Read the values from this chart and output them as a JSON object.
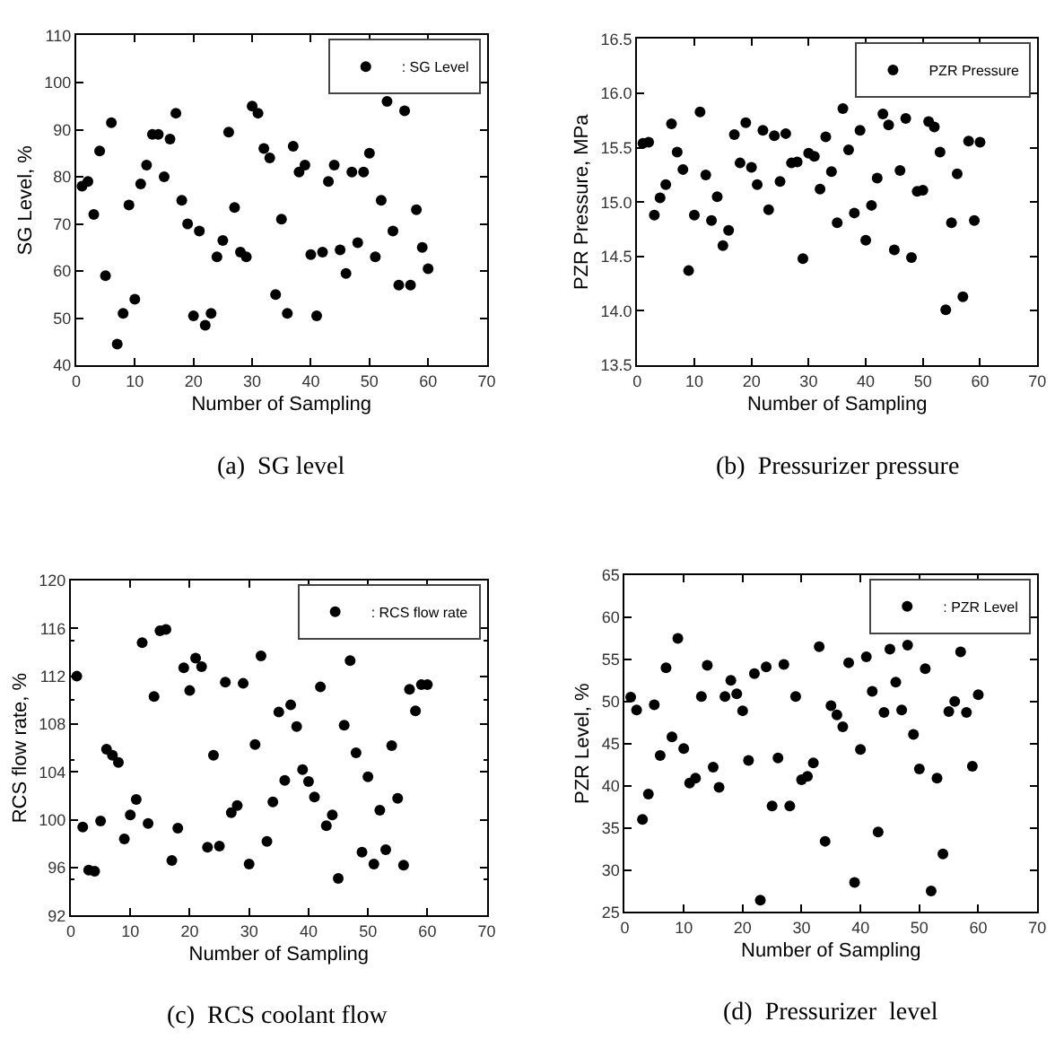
{
  "chart_data": [
    {
      "type": "scatter",
      "xlabel": "Number of Sampling",
      "ylabel": "SG Level, %",
      "annotations": [
        "(a)  SG level"
      ],
      "xlim": [
        0,
        70
      ],
      "xticks": [
        0,
        10,
        20,
        30,
        40,
        50,
        60,
        70
      ],
      "ylim": [
        40,
        110
      ],
      "yticks": [
        40,
        50,
        60,
        70,
        80,
        90,
        100,
        110
      ],
      "legend": "top right",
      "marker": "circle",
      "x": [
        1,
        2,
        3,
        4,
        5,
        6,
        7,
        8,
        9,
        10,
        11,
        12,
        13,
        14,
        15,
        16,
        17,
        18,
        19,
        20,
        21,
        22,
        23,
        24,
        25,
        26,
        27,
        28,
        29,
        30,
        31,
        32,
        33,
        34,
        35,
        36,
        37,
        38,
        39,
        40,
        41,
        42,
        43,
        44,
        45,
        46,
        47,
        48,
        49,
        50,
        51,
        52,
        53,
        54,
        55,
        56,
        57,
        58,
        59,
        60
      ],
      "series": [
        {
          "name": ": SG Level",
          "color": "#000000",
          "values": [
            78,
            79,
            72,
            85.5,
            59,
            91.5,
            44.5,
            51,
            74,
            54,
            78.5,
            82.5,
            89,
            89,
            80,
            88,
            93.5,
            75,
            70,
            50.5,
            68.5,
            48.5,
            51,
            63,
            66.5,
            89.5,
            73.5,
            64,
            63,
            95,
            93.5,
            86,
            84,
            55,
            71,
            51,
            86.5,
            81,
            82.5,
            63.5,
            50.5,
            64,
            79,
            82.5,
            64.5,
            59.5,
            81,
            66,
            81,
            85,
            63,
            75,
            96,
            68.5,
            57,
            94,
            57,
            73,
            65,
            60.5
          ]
        }
      ]
    },
    {
      "type": "scatter",
      "xlabel": "Number of Sampling",
      "ylabel": "PZR Pressure, MPa",
      "annotations": [
        "(b)  Pressurizer pressure"
      ],
      "xlim": [
        0,
        70
      ],
      "xticks": [
        0,
        10,
        20,
        30,
        40,
        50,
        60,
        70
      ],
      "ylim": [
        13.5,
        16.5
      ],
      "yticks": [
        {
          "value": 13.5,
          "label": "13.5"
        },
        {
          "value": 14,
          "label": "14.0"
        },
        {
          "value": 14.5,
          "label": "14.5"
        },
        {
          "value": 15,
          "label": "15.0"
        },
        {
          "value": 15.5,
          "label": "15.5"
        },
        {
          "value": 16,
          "label": "16.0"
        },
        {
          "value": 16.5,
          "label": "16.5"
        }
      ],
      "legend": "top right",
      "marker": "circle",
      "x": [
        1,
        2,
        3,
        4,
        5,
        6,
        7,
        8,
        9,
        10,
        11,
        12,
        13,
        14,
        15,
        16,
        17,
        18,
        19,
        20,
        21,
        22,
        23,
        24,
        25,
        26,
        27,
        28,
        29,
        30,
        31,
        32,
        33,
        34,
        35,
        36,
        37,
        38,
        39,
        40,
        41,
        42,
        43,
        44,
        45,
        46,
        47,
        48,
        49,
        50,
        51,
        52,
        53,
        54,
        55,
        56,
        57,
        58,
        59,
        60
      ],
      "series": [
        {
          "name": "PZR Pressure",
          "color": "#000000",
          "values": [
            15.54,
            15.55,
            14.88,
            15.04,
            15.16,
            15.72,
            15.46,
            15.3,
            14.37,
            14.88,
            15.83,
            15.25,
            14.83,
            15.05,
            14.6,
            14.74,
            15.62,
            15.36,
            15.73,
            15.32,
            15.16,
            15.66,
            14.93,
            15.61,
            15.19,
            15.63,
            15.36,
            15.37,
            14.48,
            15.45,
            15.42,
            15.12,
            15.6,
            15.28,
            14.81,
            15.86,
            15.48,
            14.9,
            15.66,
            14.65,
            14.97,
            15.22,
            15.81,
            15.71,
            14.56,
            15.29,
            15.77,
            14.49,
            15.1,
            15.11,
            15.74,
            15.69,
            15.46,
            14.01,
            14.81,
            15.26,
            14.13,
            15.56,
            14.83,
            15.55
          ]
        }
      ]
    },
    {
      "type": "scatter",
      "xlabel": "Number of Sampling",
      "ylabel": "RCS flow rate, %",
      "annotations": [
        "(c)  RCS coolant flow"
      ],
      "xlim": [
        0,
        70
      ],
      "xticks": [
        0,
        10,
        20,
        30,
        40,
        50,
        60,
        70
      ],
      "ylim": [
        92,
        120
      ],
      "yticks": [
        92,
        96,
        100,
        104,
        108,
        112,
        116,
        120
      ],
      "legend": "top right",
      "marker": "circle",
      "x": [
        1,
        2,
        3,
        4,
        5,
        6,
        7,
        8,
        9,
        10,
        11,
        12,
        13,
        14,
        15,
        16,
        17,
        18,
        19,
        20,
        21,
        22,
        23,
        24,
        25,
        26,
        27,
        28,
        29,
        30,
        31,
        32,
        33,
        34,
        35,
        36,
        37,
        38,
        39,
        40,
        41,
        42,
        43,
        44,
        45,
        46,
        47,
        48,
        49,
        50,
        51,
        52,
        53,
        54,
        55,
        56,
        57,
        58,
        59,
        60
      ],
      "series": [
        {
          "name": ": RCS flow rate",
          "color": "#000000",
          "values": [
            112,
            99.4,
            95.8,
            95.7,
            99.9,
            105.9,
            105.4,
            104.8,
            98.4,
            100.4,
            101.7,
            114.8,
            99.7,
            110.3,
            115.8,
            115.9,
            96.6,
            99.3,
            112.7,
            110.8,
            113.5,
            112.8,
            97.7,
            105.4,
            97.8,
            111.5,
            100.6,
            101.2,
            111.4,
            96.3,
            106.3,
            113.7,
            98.2,
            101.5,
            109,
            103.3,
            109.6,
            107.8,
            104.2,
            103.2,
            101.9,
            111.1,
            99.5,
            100.4,
            95.1,
            107.9,
            113.3,
            105.6,
            97.3,
            103.6,
            96.3,
            100.8,
            97.5,
            106.2,
            101.8,
            96.2,
            110.9,
            109.1,
            111.3,
            111.3
          ]
        }
      ]
    },
    {
      "type": "scatter",
      "xlabel": "Number of Sampling",
      "ylabel": "PZR Level, %",
      "annotations": [
        "(d)  Pressurizer  level"
      ],
      "xlim": [
        0,
        70
      ],
      "xticks": [
        0,
        10,
        20,
        30,
        40,
        50,
        60,
        70
      ],
      "ylim": [
        25,
        65
      ],
      "yticks": [
        25,
        30,
        35,
        40,
        45,
        50,
        55,
        60,
        65
      ],
      "legend": "top right",
      "marker": "circle",
      "x": [
        1,
        2,
        3,
        4,
        5,
        6,
        7,
        8,
        9,
        10,
        11,
        12,
        13,
        14,
        15,
        16,
        17,
        18,
        19,
        20,
        21,
        22,
        23,
        24,
        25,
        26,
        27,
        28,
        29,
        30,
        31,
        32,
        33,
        34,
        35,
        36,
        37,
        38,
        39,
        40,
        41,
        42,
        43,
        44,
        45,
        46,
        47,
        48,
        49,
        50,
        51,
        52,
        53,
        54,
        55,
        56,
        57,
        58,
        59,
        60
      ],
      "series": [
        {
          "name": ": PZR Level",
          "color": "#000000",
          "values": [
            50.5,
            49,
            36,
            39,
            49.6,
            43.6,
            54,
            45.8,
            57.5,
            44.4,
            40.3,
            40.9,
            50.6,
            54.3,
            42.2,
            39.8,
            50.6,
            52.5,
            50.9,
            48.9,
            43,
            53.3,
            26.4,
            54.1,
            37.6,
            43.3,
            54.4,
            37.6,
            50.6,
            40.7,
            41.1,
            42.7,
            56.5,
            33.4,
            49.5,
            48.4,
            47,
            54.6,
            28.5,
            44.3,
            55.3,
            51.2,
            34.5,
            48.7,
            56.2,
            52.3,
            49,
            56.7,
            46.1,
            42,
            53.9,
            27.5,
            40.9,
            31.9,
            48.8,
            50,
            55.9,
            48.7,
            42.3,
            50.8
          ]
        }
      ]
    }
  ]
}
